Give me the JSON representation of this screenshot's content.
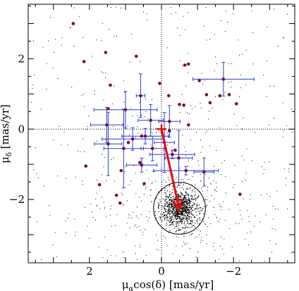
{
  "chart_data": {
    "type": "scatter",
    "title": "",
    "xlabel_main": "μ",
    "xlabel_sub": "α",
    "xlabel_rest": "cos(δ) [mas/yr]",
    "ylabel_main": "μ",
    "ylabel_sub": "δ",
    "ylabel_rest": " [mas/yr]",
    "xlim": [
      3.7,
      -3.7
    ],
    "ylim": [
      -3.8,
      3.55
    ],
    "x_ticks": [
      2,
      0,
      -2
    ],
    "x_tick_labels": [
      "2",
      "0",
      "−2"
    ],
    "y_ticks": [
      2,
      0,
      -2
    ],
    "y_tick_labels": [
      "2",
      "0",
      "−2"
    ],
    "grid": false,
    "reference_lines": {
      "x": 0,
      "y": 0,
      "style": "dotted"
    },
    "colors": {
      "field_stars": "#000000",
      "members": "#7a0a4a",
      "errorbars": "#2a3fd0",
      "arrow": "#e01010",
      "circle": "#000000"
    },
    "cluster_circle": {
      "center": [
        -0.5,
        -2.25
      ],
      "radius_mas_yr": 0.72
    },
    "motion_arrow": {
      "from": [
        0.0,
        0.0
      ],
      "to": [
        -0.5,
        -2.3
      ]
    },
    "member_points": [
      {
        "x": 2.45,
        "y": 3.0
      },
      {
        "x": 2.15,
        "y": 1.92
      },
      {
        "x": 1.55,
        "y": 2.18
      },
      {
        "x": 1.42,
        "y": 1.25
      },
      {
        "x": 1.48,
        "y": 0.58
      },
      {
        "x": 0.7,
        "y": 2.07
      },
      {
        "x": -0.65,
        "y": 1.82
      },
      {
        "x": -0.75,
        "y": 1.85
      },
      {
        "x": -1.05,
        "y": 1.38
      },
      {
        "x": -1.25,
        "y": 0.98
      },
      {
        "x": -1.35,
        "y": 0.75
      },
      {
        "x": -1.62,
        "y": 0.95
      },
      {
        "x": -1.88,
        "y": 0.98
      },
      {
        "x": -2.08,
        "y": 0.72
      },
      {
        "x": -2.18,
        "y": -1.85
      },
      {
        "x": 2.1,
        "y": -1.05
      },
      {
        "x": 1.72,
        "y": -1.58
      },
      {
        "x": 1.25,
        "y": -1.88
      },
      {
        "x": 1.15,
        "y": -2.1
      },
      {
        "x": 0.48,
        "y": -1.55
      },
      {
        "x": 0.05,
        "y": 1.3
      },
      {
        "x": -0.2,
        "y": 0.95
      },
      {
        "x": -0.5,
        "y": 0.7
      },
      {
        "x": -0.62,
        "y": 0.68
      },
      {
        "x": -0.75,
        "y": 0.12
      },
      {
        "x": -0.22,
        "y": -0.05
      },
      {
        "x": -0.38,
        "y": -0.6
      },
      {
        "x": 0.6,
        "y": -0.95
      },
      {
        "x": 1.12,
        "y": -1.18
      },
      {
        "x": 0.92,
        "y": -0.38
      },
      {
        "x": 0.55,
        "y": -0.2
      }
    ],
    "errorbar_points": [
      {
        "x": -1.72,
        "y": 1.42,
        "xerr": 0.85,
        "yerr": 0.48
      },
      {
        "x": 0.58,
        "y": 0.95,
        "xerr": 0.12,
        "yerr": 0.62
      },
      {
        "x": 1.0,
        "y": 0.55,
        "xerr": 0.88,
        "yerr": 0.52
      },
      {
        "x": 0.3,
        "y": 0.25,
        "xerr": 0.35,
        "yerr": 0.45
      },
      {
        "x": 1.52,
        "y": 0.12,
        "xerr": 0.45,
        "yerr": 0.5
      },
      {
        "x": 1.48,
        "y": -0.42,
        "xerr": 0.38,
        "yerr": 0.9
      },
      {
        "x": 1.05,
        "y": -0.55,
        "xerr": 0.55,
        "yerr": 1.12
      },
      {
        "x": 0.8,
        "y": -0.28,
        "xerr": 0.85,
        "yerr": 0.32
      },
      {
        "x": 0.25,
        "y": -0.55,
        "xerr": 0.32,
        "yerr": 0.35
      },
      {
        "x": -0.08,
        "y": -0.38,
        "xerr": 0.28,
        "yerr": 0.85
      },
      {
        "x": -0.22,
        "y": 0.22,
        "xerr": 0.3,
        "yerr": 0.45
      },
      {
        "x": -0.48,
        "y": -0.82,
        "xerr": 0.38,
        "yerr": 0.78
      },
      {
        "x": 0.55,
        "y": -1.02,
        "xerr": 0.42,
        "yerr": 0.2
      },
      {
        "x": -0.68,
        "y": -1.18,
        "xerr": 0.9,
        "yerr": 0.12
      },
      {
        "x": -0.3,
        "y": -0.72,
        "xerr": 0.62,
        "yerr": 0.12
      },
      {
        "x": -1.18,
        "y": -1.22,
        "xerr": 0.28,
        "yerr": 0.4
      },
      {
        "x": 0.45,
        "y": -0.2,
        "xerr": 0.65,
        "yerr": 0.22
      }
    ]
  }
}
